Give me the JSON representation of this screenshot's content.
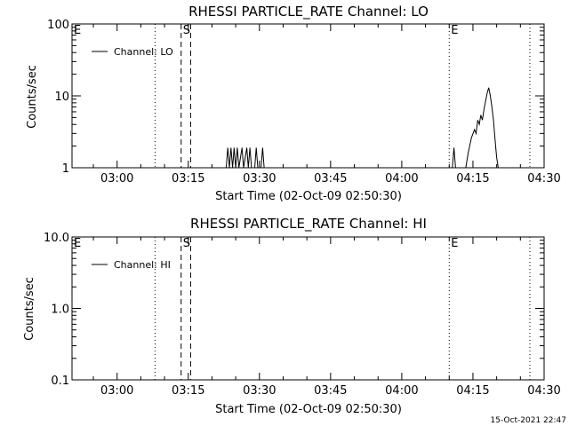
{
  "chart_data": [
    {
      "type": "line",
      "title": "RHESSI PARTICLE_RATE Channel: LO",
      "xlabel": "Start Time (02-Oct-09 02:50:30)",
      "ylabel": "Counts/sec",
      "yscale": "log",
      "ylim": [
        1,
        100
      ],
      "xlim": [
        "02:50:30",
        "04:30:00"
      ],
      "grid": false,
      "legend": {
        "position": "top-left",
        "entries": [
          "Channel: LO"
        ]
      },
      "x_ticks": [
        "03:00",
        "03:15",
        "03:30",
        "03:45",
        "04:00",
        "04:15",
        "04:30"
      ],
      "y_ticks": [
        "1",
        "10",
        "100"
      ],
      "markers": [
        {
          "label": "E",
          "x": "02:50:30",
          "style": "dotted"
        },
        {
          "label": "",
          "x": "03:08:00",
          "style": "dotted"
        },
        {
          "label": "S",
          "x": "03:13:30",
          "style": "dashed"
        },
        {
          "label": "",
          "x": "03:15:30",
          "style": "dashed"
        },
        {
          "label": "E",
          "x": "04:10:00",
          "style": "dotted"
        },
        {
          "label": "",
          "x": "04:27:00",
          "style": "dotted"
        }
      ],
      "series": [
        {
          "name": "Channel: LO",
          "segments": [
            [
              [
                "03:23:00",
                1
              ],
              [
                "03:23:20",
                1.9
              ],
              [
                "03:23:40",
                1
              ],
              [
                "03:24:00",
                1.9
              ],
              [
                "03:24:20",
                1
              ],
              [
                "03:24:40",
                1.9
              ],
              [
                "03:25:00",
                1
              ],
              [
                "03:25:20",
                1.9
              ],
              [
                "03:25:40",
                1
              ],
              [
                "03:26:20",
                1.9
              ],
              [
                "03:26:40",
                1
              ],
              [
                "03:27:20",
                1.9
              ],
              [
                "03:27:40",
                1
              ],
              [
                "03:28:00",
                1.9
              ],
              [
                "03:28:20",
                1
              ],
              [
                "03:29:00",
                1
              ],
              [
                "03:29:20",
                1.9
              ],
              [
                "03:29:40",
                1
              ],
              [
                "03:30:20",
                1
              ],
              [
                "03:30:40",
                1.9
              ],
              [
                "03:31:00",
                1
              ]
            ],
            [
              [
                "04:10:40",
                1
              ],
              [
                "04:11:00",
                1.9
              ],
              [
                "04:11:20",
                1
              ]
            ],
            [
              [
                "04:13:30",
                1
              ],
              [
                "04:14:00",
                1.6
              ],
              [
                "04:14:40",
                2.6
              ],
              [
                "04:15:20",
                3.4
              ],
              [
                "04:15:40",
                3.0
              ],
              [
                "04:16:00",
                4.6
              ],
              [
                "04:16:20",
                4.0
              ],
              [
                "04:16:40",
                5.4
              ],
              [
                "04:17:00",
                4.6
              ],
              [
                "04:17:20",
                6.5
              ],
              [
                "04:17:40",
                8.5
              ],
              [
                "04:18:00",
                11
              ],
              [
                "04:18:20",
                13
              ],
              [
                "04:18:40",
                10
              ],
              [
                "04:19:00",
                7
              ],
              [
                "04:19:20",
                4.5
              ],
              [
                "04:19:40",
                2.4
              ],
              [
                "04:20:00",
                1.4
              ],
              [
                "04:20:20",
                1
              ]
            ]
          ]
        }
      ]
    },
    {
      "type": "line",
      "title": "RHESSI PARTICLE_RATE Channel: HI",
      "xlabel": "Start Time (02-Oct-09 02:50:30)",
      "ylabel": "Counts/sec",
      "yscale": "log",
      "ylim": [
        0.1,
        10
      ],
      "xlim": [
        "02:50:30",
        "04:30:00"
      ],
      "grid": false,
      "legend": {
        "position": "top-left",
        "entries": [
          "Channel: HI"
        ]
      },
      "x_ticks": [
        "03:00",
        "03:15",
        "03:30",
        "03:45",
        "04:00",
        "04:15",
        "04:30"
      ],
      "y_ticks": [
        "0.1",
        "1.0",
        "10.0"
      ],
      "markers": [
        {
          "label": "E",
          "x": "02:50:30",
          "style": "dotted"
        },
        {
          "label": "",
          "x": "03:08:00",
          "style": "dotted"
        },
        {
          "label": "S",
          "x": "03:13:30",
          "style": "dashed"
        },
        {
          "label": "",
          "x": "03:15:30",
          "style": "dashed"
        },
        {
          "label": "E",
          "x": "04:10:00",
          "style": "dotted"
        },
        {
          "label": "",
          "x": "04:27:00",
          "style": "dotted"
        }
      ],
      "series": [
        {
          "name": "Channel: HI",
          "segments": []
        }
      ]
    }
  ],
  "footer": {
    "timestamp": "15-Oct-2021 22:47"
  }
}
